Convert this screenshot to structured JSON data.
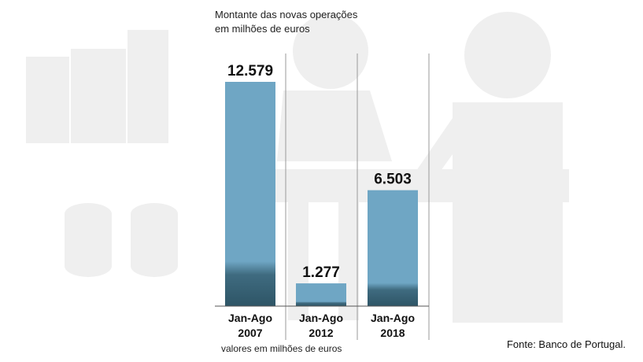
{
  "chart_data": {
    "type": "bar",
    "title_lines": [
      "Montante das novas operações",
      "em milhões de euros"
    ],
    "categories": [
      {
        "line1": "Jan-Ago",
        "line2": "2007"
      },
      {
        "line1": "Jan-Ago",
        "line2": "2012"
      },
      {
        "line1": "Jan-Ago",
        "line2": "2018"
      }
    ],
    "values": [
      12579,
      1277,
      6503
    ],
    "value_labels": [
      "12.579",
      "1.277",
      "6.503"
    ],
    "ylim": [
      0,
      12579
    ],
    "unit_note": "valores em milhões de euros",
    "source": "Fonte: Banco de Portugal.",
    "colors": {
      "bar_top": "#6fa6c4",
      "bar_bottom": "#2e5566",
      "background_art": "#eeeeee"
    }
  }
}
